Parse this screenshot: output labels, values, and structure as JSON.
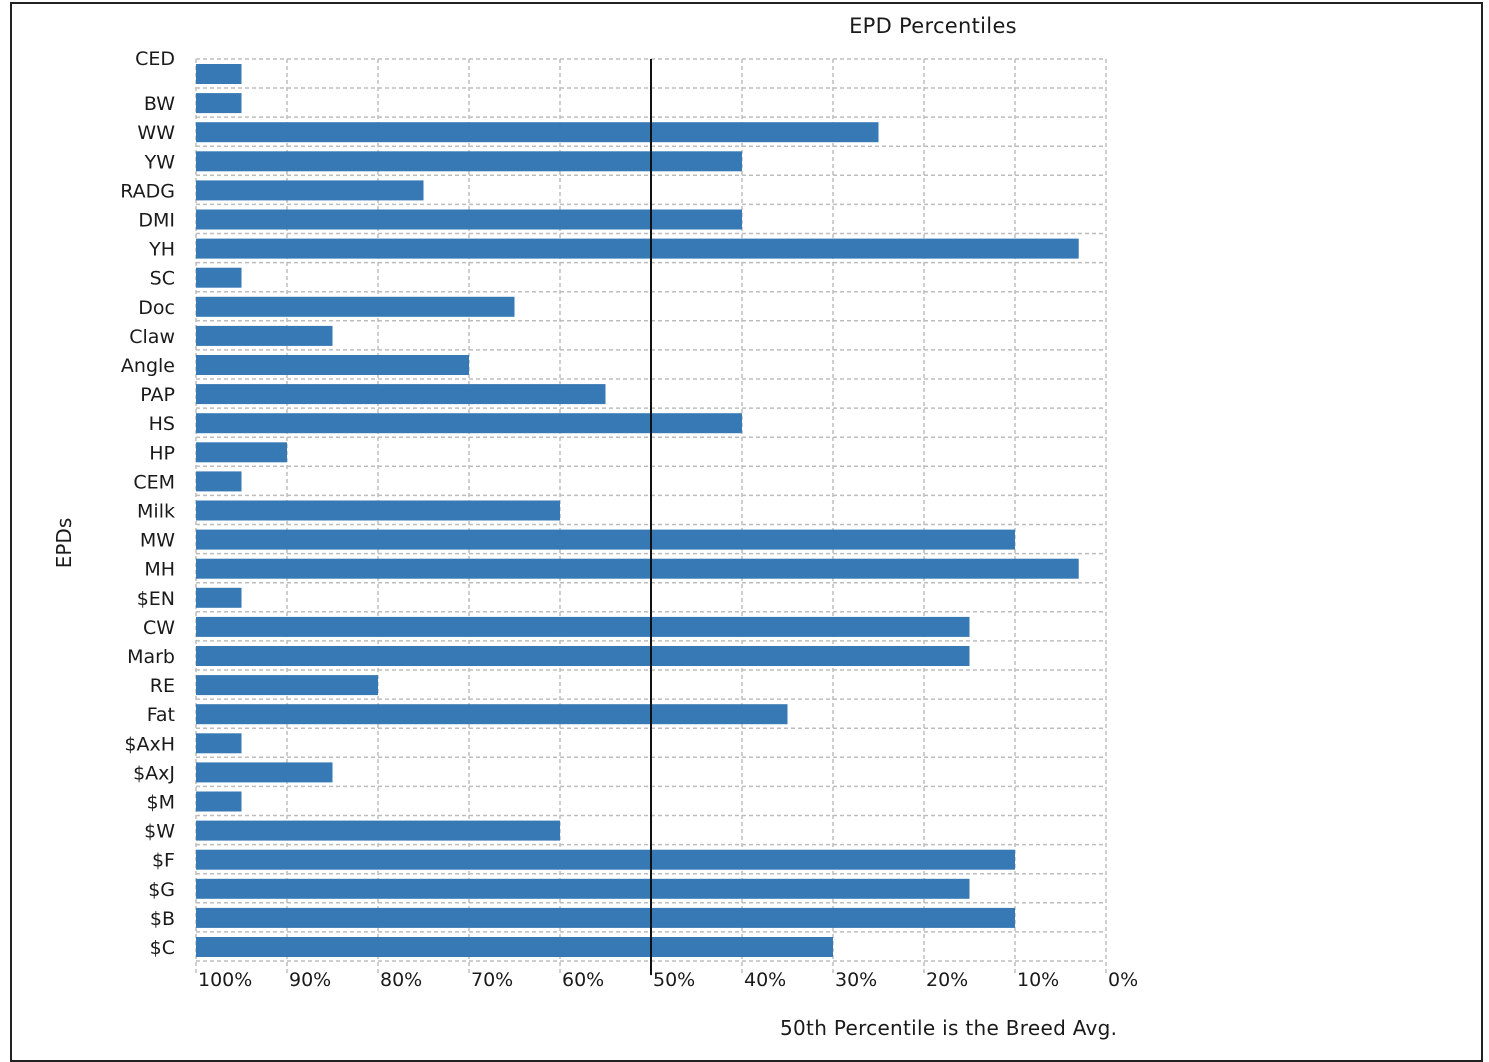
{
  "chart_data": {
    "type": "bar",
    "orientation": "horizontal",
    "title": "EPD Percentiles",
    "ylabel": "EPDs",
    "footnote": "50th Percentile is the Breed Avg.",
    "categories": [
      "CED",
      "BW",
      "WW",
      "YW",
      "RADG",
      "DMI",
      "YH",
      "SC",
      "Doc",
      "Claw",
      "Angle",
      "PAP",
      "HS",
      "HP",
      "CEM",
      "Milk",
      "MW",
      "MH",
      "$EN",
      "CW",
      "Marb",
      "RE",
      "Fat",
      "$AxH",
      "$AxJ",
      "$M",
      "$W",
      "$F",
      "$G",
      "$B",
      "$C"
    ],
    "values": [
      95,
      95,
      25,
      40,
      75,
      40,
      3,
      95,
      65,
      85,
      70,
      55,
      40,
      90,
      95,
      60,
      10,
      3,
      95,
      15,
      15,
      80,
      35,
      95,
      85,
      95,
      60,
      10,
      15,
      10,
      30
    ],
    "x_ticks": [
      "100%",
      "90%",
      "80%",
      "70%",
      "60%",
      "50%",
      "40%",
      "30%",
      "20%",
      "10%",
      "0%"
    ],
    "xlim": [
      100,
      0
    ],
    "reference_line": 50,
    "grid": true,
    "bar_color": "#3679b5"
  }
}
